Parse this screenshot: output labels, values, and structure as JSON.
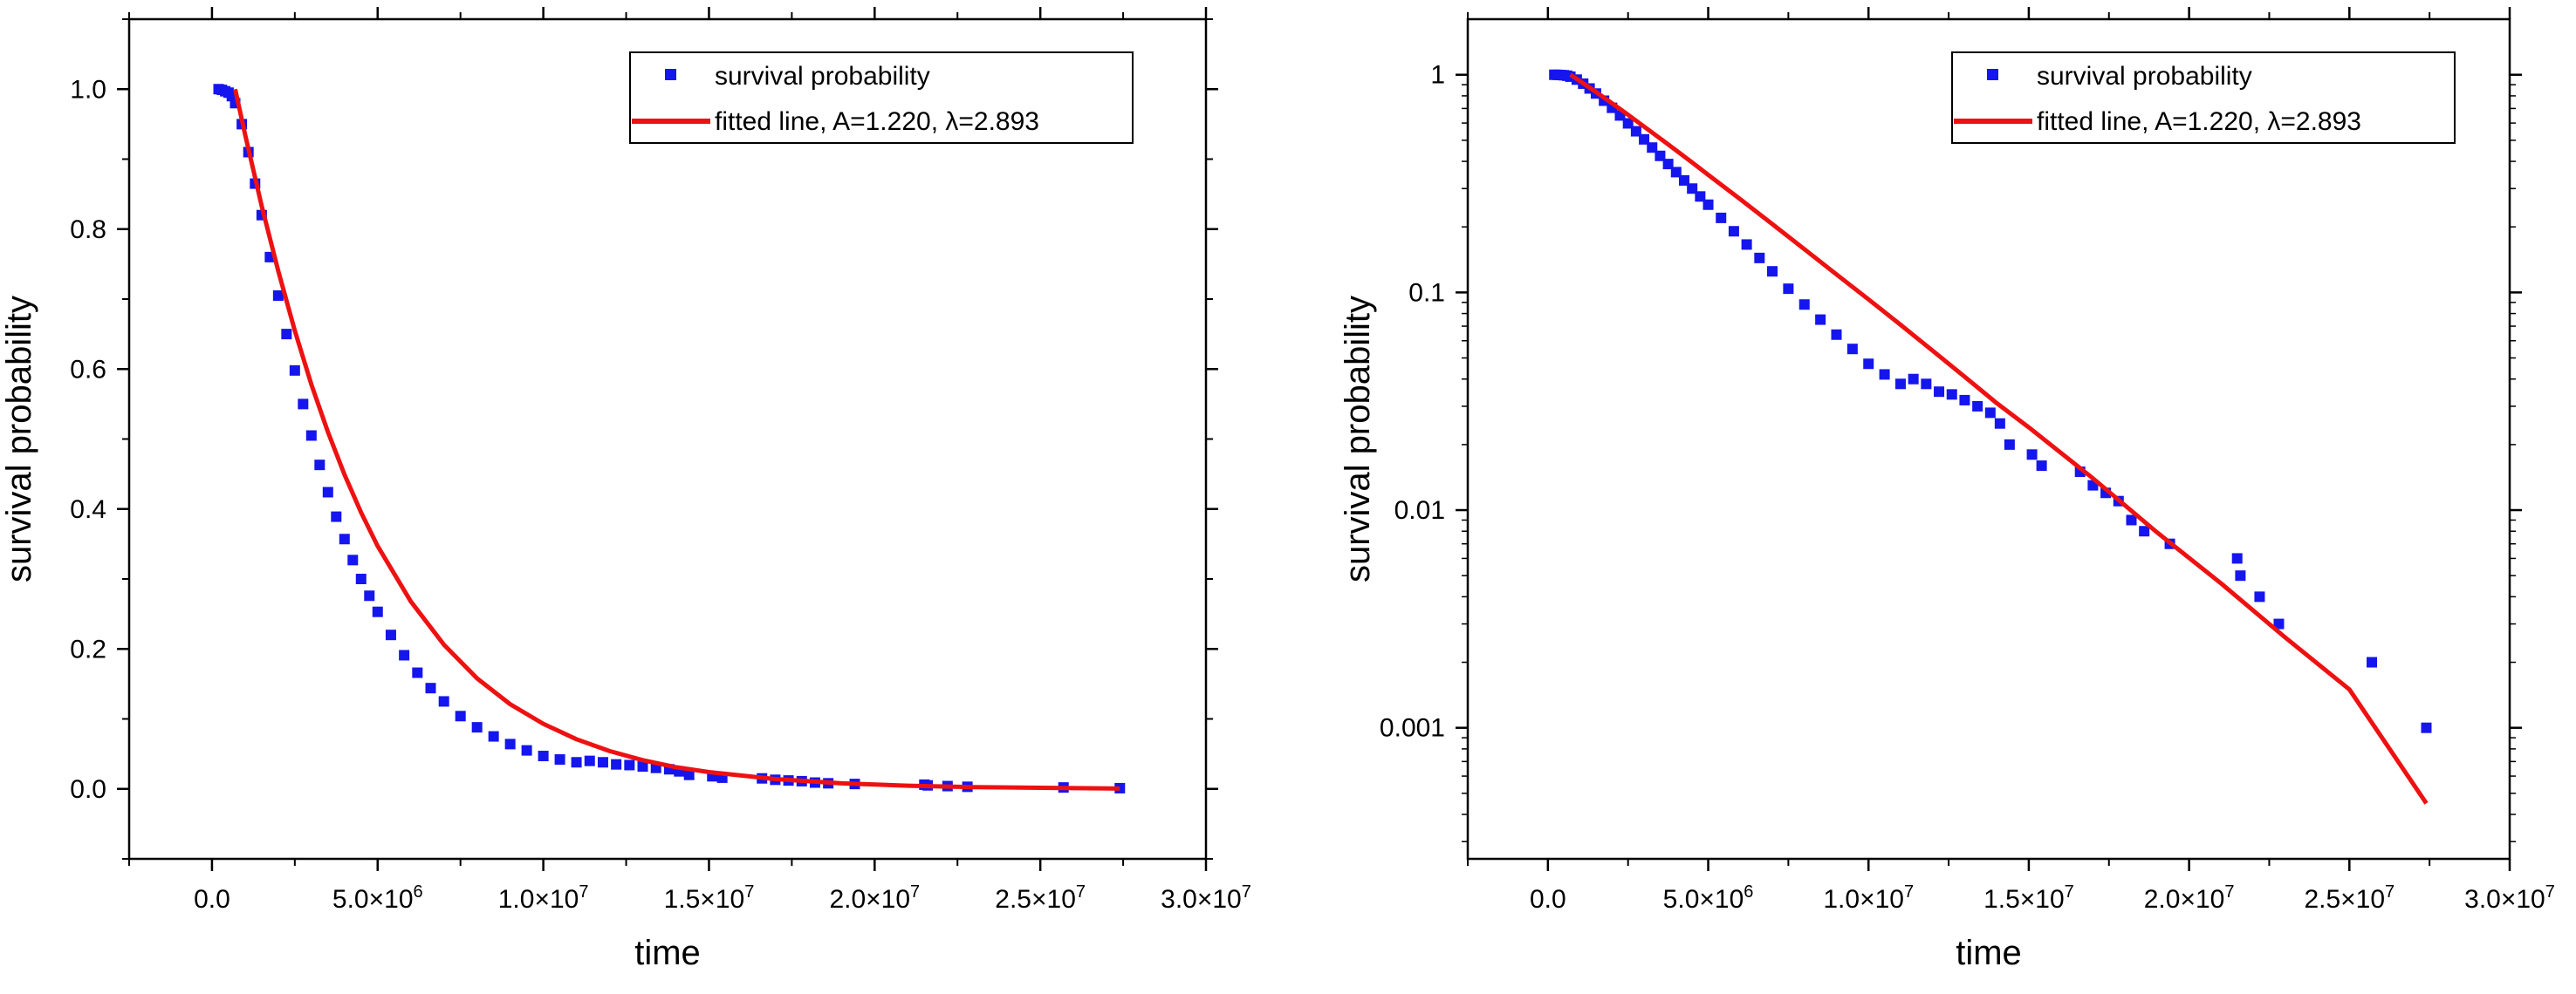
{
  "colors": {
    "data": "#1515ee",
    "fit": "#ee1111",
    "axis": "#000000",
    "background": "#ffffff"
  },
  "chart_data": [
    {
      "type": "scatter",
      "name": "linear-survival-plot",
      "xlabel": "time",
      "ylabel": "survival probability",
      "yscale": "linear",
      "xlim": [
        -2500000,
        30000000
      ],
      "ylim": [
        -0.1,
        1.1
      ],
      "x_ticks": [
        0,
        5000000,
        10000000,
        15000000,
        20000000,
        25000000,
        30000000
      ],
      "x_tick_labels": [
        {
          "mantissa": "0.0",
          "exp": ""
        },
        {
          "mantissa": "5.0×10",
          "exp": "6"
        },
        {
          "mantissa": "1.0×10",
          "exp": "7"
        },
        {
          "mantissa": "1.5×10",
          "exp": "7"
        },
        {
          "mantissa": "2.0×10",
          "exp": "7"
        },
        {
          "mantissa": "2.5×10",
          "exp": "7"
        },
        {
          "mantissa": "3.0×10",
          "exp": "7"
        }
      ],
      "y_ticks": [
        0.0,
        0.2,
        0.4,
        0.6,
        0.8,
        1.0
      ],
      "y_tick_labels": [
        "0.0",
        "0.2",
        "0.4",
        "0.6",
        "0.8",
        "1.0"
      ],
      "legend": {
        "position": "top-right",
        "entries": [
          "survival probability",
          "fitted line, A=1.220, λ=2.893"
        ]
      },
      "series": [
        {
          "name": "survival probability",
          "style": "markers",
          "x": [
            200000,
            300000,
            400000,
            500000,
            600000,
            700000,
            900000,
            1100000,
            1300000,
            1500000,
            1750000,
            2000000,
            2250000,
            2500000,
            2750000,
            3000000,
            3250000,
            3500000,
            3750000,
            4000000,
            4250000,
            4500000,
            4750000,
            5000000,
            5400000,
            5800000,
            6200000,
            6600000,
            7000000,
            7500000,
            8000000,
            8500000,
            9000000,
            9500000,
            10000000,
            10500000,
            11000000,
            11400000,
            11800000,
            12200000,
            12600000,
            13000000,
            13400000,
            13800000,
            14100000,
            14400000,
            15100000,
            15400000,
            16600000,
            17000000,
            17400000,
            17800000,
            18200000,
            18600000,
            19400000,
            21500000,
            21600000,
            22200000,
            22800000,
            25700000,
            27400000
          ],
          "y": [
            1.0,
            0.999,
            0.997,
            0.995,
            0.99,
            0.98,
            0.95,
            0.91,
            0.865,
            0.82,
            0.76,
            0.705,
            0.65,
            0.598,
            0.55,
            0.505,
            0.463,
            0.424,
            0.389,
            0.357,
            0.327,
            0.3,
            0.276,
            0.253,
            0.22,
            0.191,
            0.166,
            0.144,
            0.125,
            0.104,
            0.088,
            0.075,
            0.064,
            0.055,
            0.047,
            0.042,
            0.038,
            0.04,
            0.038,
            0.035,
            0.034,
            0.032,
            0.03,
            0.028,
            0.025,
            0.02,
            0.018,
            0.016,
            0.015,
            0.013,
            0.012,
            0.011,
            0.009,
            0.008,
            0.007,
            0.006,
            0.005,
            0.004,
            0.003,
            0.002,
            0.001
          ]
        },
        {
          "name": "fitted line, A=1.220, λ=2.893",
          "style": "line",
          "x": [
            700000,
            1000000,
            1500000,
            2000000,
            2500000,
            3000000,
            3500000,
            4000000,
            4500000,
            5000000,
            6000000,
            7000000,
            8000000,
            9000000,
            10000000,
            11000000,
            12000000,
            13000000,
            14000000,
            15000000,
            17000000,
            19000000,
            21000000,
            23000000,
            25000000,
            27400000
          ],
          "y": [
            1.0,
            0.935,
            0.833,
            0.74,
            0.655,
            0.578,
            0.51,
            0.449,
            0.395,
            0.347,
            0.268,
            0.206,
            0.158,
            0.121,
            0.093,
            0.071,
            0.054,
            0.041,
            0.031,
            0.024,
            0.014,
            0.0079,
            0.0046,
            0.0026,
            0.0015,
            0.00045
          ]
        }
      ]
    },
    {
      "type": "scatter",
      "name": "log-survival-plot",
      "xlabel": "time",
      "ylabel": "survival probability",
      "yscale": "log",
      "xlim": [
        -2500000,
        30000000
      ],
      "ylim": [
        0.00025,
        1.8
      ],
      "x_ticks": [
        0,
        5000000,
        10000000,
        15000000,
        20000000,
        25000000,
        30000000
      ],
      "x_tick_labels": [
        {
          "mantissa": "0.0",
          "exp": ""
        },
        {
          "mantissa": "5.0×10",
          "exp": "6"
        },
        {
          "mantissa": "1.0×10",
          "exp": "7"
        },
        {
          "mantissa": "1.5×10",
          "exp": "7"
        },
        {
          "mantissa": "2.0×10",
          "exp": "7"
        },
        {
          "mantissa": "2.5×10",
          "exp": "7"
        },
        {
          "mantissa": "3.0×10",
          "exp": "7"
        }
      ],
      "y_ticks": [
        0.001,
        0.01,
        0.1,
        1
      ],
      "y_tick_labels": [
        "0.001",
        "0.01",
        "0.1",
        "1"
      ],
      "legend": {
        "position": "top-right",
        "entries": [
          "survival probability",
          "fitted line, A=1.220, λ=2.893"
        ]
      },
      "series": [
        {
          "name": "survival probability",
          "style": "markers",
          "x": [
            200000,
            300000,
            400000,
            500000,
            600000,
            700000,
            900000,
            1100000,
            1300000,
            1500000,
            1750000,
            2000000,
            2250000,
            2500000,
            2750000,
            3000000,
            3250000,
            3500000,
            3750000,
            4000000,
            4250000,
            4500000,
            4750000,
            5000000,
            5400000,
            5800000,
            6200000,
            6600000,
            7000000,
            7500000,
            8000000,
            8500000,
            9000000,
            9500000,
            10000000,
            10500000,
            11000000,
            11400000,
            11800000,
            12200000,
            12600000,
            13000000,
            13400000,
            13800000,
            14100000,
            14400000,
            15100000,
            15400000,
            16600000,
            17000000,
            17400000,
            17800000,
            18200000,
            18600000,
            19400000,
            21500000,
            21600000,
            22200000,
            22800000,
            25700000,
            27400000
          ],
          "y": [
            1.0,
            0.999,
            0.997,
            0.995,
            0.99,
            0.98,
            0.95,
            0.91,
            0.865,
            0.82,
            0.76,
            0.705,
            0.65,
            0.598,
            0.55,
            0.505,
            0.463,
            0.424,
            0.389,
            0.357,
            0.327,
            0.3,
            0.276,
            0.253,
            0.22,
            0.191,
            0.166,
            0.144,
            0.125,
            0.104,
            0.088,
            0.075,
            0.064,
            0.055,
            0.047,
            0.042,
            0.038,
            0.04,
            0.038,
            0.035,
            0.034,
            0.032,
            0.03,
            0.028,
            0.025,
            0.02,
            0.018,
            0.016,
            0.015,
            0.013,
            0.012,
            0.011,
            0.009,
            0.008,
            0.007,
            0.006,
            0.005,
            0.004,
            0.003,
            0.002,
            0.001
          ]
        },
        {
          "name": "fitted line, A=1.220, λ=2.893",
          "style": "line",
          "x": [
            700000,
            1000000,
            1500000,
            2000000,
            2500000,
            3000000,
            3500000,
            4000000,
            4500000,
            5000000,
            6000000,
            7000000,
            8000000,
            9000000,
            10000000,
            11000000,
            12000000,
            13000000,
            14000000,
            15000000,
            17000000,
            19000000,
            21000000,
            23000000,
            25000000,
            27400000
          ],
          "y": [
            1.0,
            0.935,
            0.833,
            0.74,
            0.655,
            0.578,
            0.51,
            0.449,
            0.395,
            0.347,
            0.268,
            0.206,
            0.158,
            0.121,
            0.093,
            0.071,
            0.054,
            0.041,
            0.031,
            0.024,
            0.014,
            0.0079,
            0.0046,
            0.0026,
            0.0015,
            0.00045
          ]
        }
      ]
    }
  ]
}
